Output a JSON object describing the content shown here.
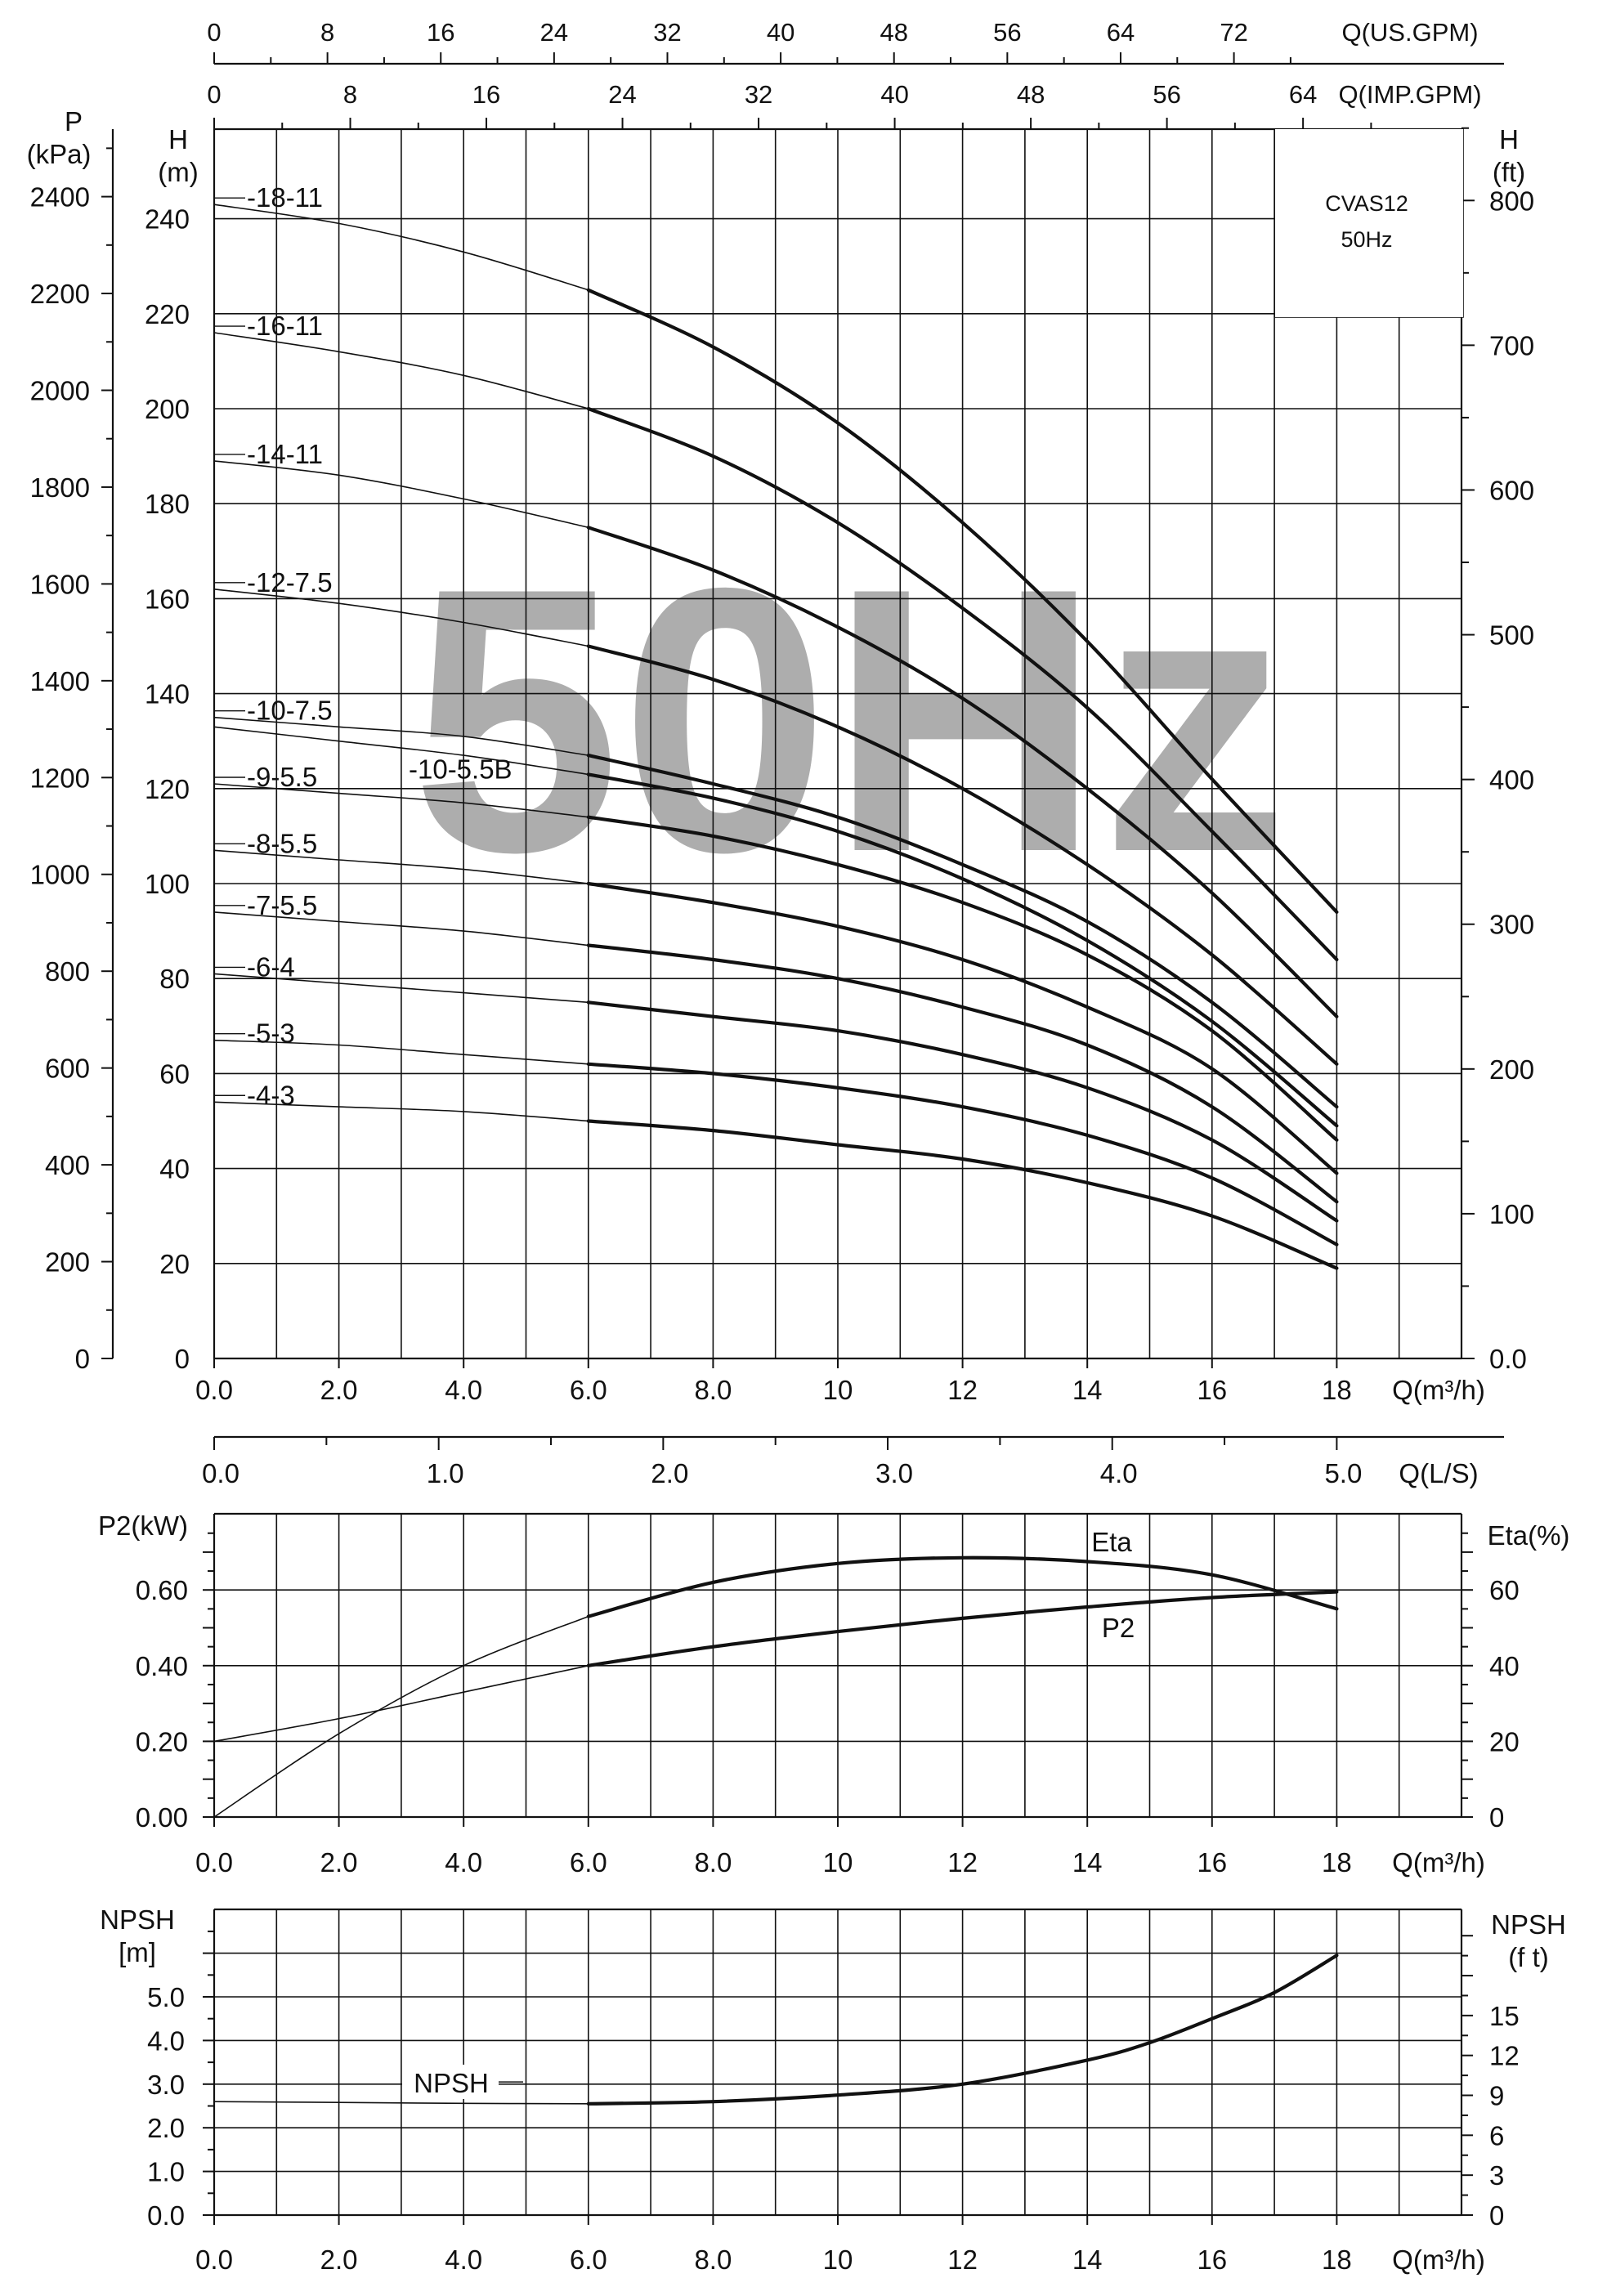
{
  "chart_data": [
    {
      "id": "head",
      "type": "line",
      "title": "",
      "watermark": "50Hz",
      "model_box": {
        "line1": "CVAS12",
        "line2": "50Hz"
      },
      "x_axis": {
        "label": "Q(m³/h)",
        "range": [
          0,
          20
        ],
        "ticks": [
          "0.0",
          "2.0",
          "4.0",
          "6.0",
          "8.0",
          "10",
          "12",
          "14",
          "16",
          "18"
        ]
      },
      "x_axis_ls": {
        "label": "Q(L/S)",
        "ticks": [
          "0.0",
          "1.0",
          "2.0",
          "3.0",
          "4.0",
          "5.0"
        ]
      },
      "x_axis_usgpm": {
        "label": "Q(US.GPM)",
        "ticks": [
          "0",
          "8",
          "16",
          "24",
          "32",
          "40",
          "48",
          "56",
          "64",
          "72"
        ]
      },
      "x_axis_impgpm": {
        "label": "Q(IMP.GPM)",
        "ticks": [
          "0",
          "8",
          "16",
          "24",
          "32",
          "40",
          "48",
          "56",
          "64"
        ]
      },
      "y_axis_left": {
        "label_line1": "H",
        "label_line2": "(m)",
        "range": [
          0,
          260
        ],
        "ticks": [
          "0",
          "20",
          "40",
          "60",
          "80",
          "100",
          "120",
          "140",
          "160",
          "180",
          "200",
          "220",
          "240"
        ]
      },
      "y_axis_pressure": {
        "label_line1": "P",
        "label_line2": "(kPa)",
        "ticks": [
          "0",
          "200",
          "400",
          "600",
          "800",
          "1000",
          "1200",
          "1400",
          "1600",
          "1800",
          "2000",
          "2200",
          "2400"
        ]
      },
      "y_axis_right": {
        "label_line1": "H",
        "label_line2": "(ft)",
        "ticks": [
          "0.0",
          "100",
          "200",
          "300",
          "400",
          "500",
          "600",
          "700",
          "800"
        ]
      },
      "grid": true,
      "series": [
        {
          "name": "-18-11",
          "q": [
            0,
            2,
            4,
            6,
            8,
            10,
            12,
            14,
            16,
            18
          ],
          "h": [
            243,
            239,
            233,
            225,
            213,
            197,
            176,
            151,
            122,
            94
          ]
        },
        {
          "name": "-16-11",
          "q": [
            0,
            2,
            4,
            6,
            8,
            10,
            12,
            14,
            16,
            18
          ],
          "h": [
            216,
            212,
            207,
            200,
            190,
            176,
            158,
            137,
            111,
            84
          ]
        },
        {
          "name": "-14-11",
          "q": [
            0,
            2,
            4,
            6,
            8,
            10,
            12,
            14,
            16,
            18
          ],
          "h": [
            189,
            186,
            181,
            175,
            166,
            154,
            139,
            120,
            98,
            72
          ]
        },
        {
          "name": "-12-7.5",
          "q": [
            0,
            2,
            4,
            6,
            8,
            10,
            12,
            14,
            16,
            18
          ],
          "h": [
            162,
            159,
            155,
            150,
            143,
            133,
            120,
            104,
            85,
            62
          ]
        },
        {
          "name": "-10-7.5",
          "q": [
            0,
            2,
            4,
            6,
            8,
            10,
            12,
            14,
            16,
            18
          ],
          "h": [
            135,
            133,
            131,
            127,
            121,
            114,
            104,
            92,
            75,
            53
          ]
        },
        {
          "name": "-10-5.5B",
          "q": [
            0,
            2,
            4,
            6,
            8,
            10,
            12,
            14,
            16,
            18
          ],
          "h": [
            133,
            130,
            127,
            123,
            118,
            111,
            101,
            88,
            71,
            49
          ]
        },
        {
          "name": "-9-5.5",
          "q": [
            0,
            2,
            4,
            6,
            8,
            10,
            12,
            14,
            16,
            18
          ],
          "h": [
            121,
            119,
            117,
            114,
            110,
            104,
            96,
            85,
            69,
            46
          ]
        },
        {
          "name": "-8-5.5",
          "q": [
            0,
            2,
            4,
            6,
            8,
            10,
            12,
            14,
            16,
            18
          ],
          "h": [
            107,
            105,
            103,
            100,
            96,
            91,
            84,
            74,
            61,
            39
          ]
        },
        {
          "name": "-7-5.5",
          "q": [
            0,
            2,
            4,
            6,
            8,
            10,
            12,
            14,
            16,
            18
          ],
          "h": [
            94,
            92,
            90,
            87,
            84,
            80,
            74,
            66,
            53,
            33
          ]
        },
        {
          "name": "-6-4",
          "q": [
            0,
            2,
            4,
            6,
            8,
            10,
            12,
            14,
            16,
            18
          ],
          "h": [
            81,
            79,
            77,
            75,
            72,
            69,
            64,
            57,
            46,
            29
          ]
        },
        {
          "name": "-5-3",
          "q": [
            0,
            2,
            4,
            6,
            8,
            10,
            12,
            14,
            16,
            18
          ],
          "h": [
            67,
            66,
            64,
            62,
            60,
            57,
            53,
            47,
            38,
            24
          ]
        },
        {
          "name": "-4-3",
          "q": [
            0,
            2,
            4,
            6,
            8,
            10,
            12,
            14,
            16,
            18
          ],
          "h": [
            54,
            53,
            52,
            50,
            48,
            45,
            42,
            37,
            30,
            19
          ]
        }
      ]
    },
    {
      "id": "power",
      "type": "line",
      "x_axis": {
        "label": "Q(m³/h)",
        "range": [
          0,
          20
        ],
        "ticks": [
          "0.0",
          "2.0",
          "4.0",
          "6.0",
          "8.0",
          "10",
          "12",
          "14",
          "16",
          "18"
        ]
      },
      "y_axis_left": {
        "label": "P2(kW)",
        "range": [
          0,
          0.8
        ],
        "ticks": [
          "0.00",
          "0.20",
          "0.40",
          "0.60"
        ]
      },
      "y_axis_right": {
        "label": "Eta(%)",
        "range": [
          0,
          80
        ],
        "ticks": [
          "0",
          "20",
          "40",
          "60"
        ]
      },
      "grid": true,
      "series": [
        {
          "name": "P2",
          "axis": "left",
          "q": [
            0,
            2,
            4,
            6,
            8,
            10,
            12,
            14,
            16,
            18
          ],
          "v": [
            0.2,
            0.26,
            0.33,
            0.4,
            0.45,
            0.49,
            0.525,
            0.555,
            0.58,
            0.595
          ]
        },
        {
          "name": "Eta",
          "axis": "right",
          "q": [
            0,
            2,
            4,
            6,
            8,
            10,
            12,
            14,
            16,
            18
          ],
          "v": [
            0,
            22,
            40,
            53,
            62,
            67,
            68.5,
            67.5,
            64,
            55
          ]
        }
      ]
    },
    {
      "id": "npsh",
      "type": "line",
      "x_axis": {
        "label": "Q(m³/h)",
        "range": [
          0,
          20
        ],
        "ticks": [
          "0.0",
          "2.0",
          "4.0",
          "6.0",
          "8.0",
          "10",
          "12",
          "14",
          "16",
          "18"
        ]
      },
      "y_axis_left": {
        "label_line1": "NPSH",
        "label_line2": "[m]",
        "range": [
          0,
          7
        ],
        "ticks": [
          "0.0",
          "1.0",
          "2.0",
          "3.0",
          "4.0",
          "5.0"
        ]
      },
      "y_axis_right": {
        "label_line1": "NPSH",
        "label_line2": "(f t)",
        "ticks": [
          "0",
          "3",
          "6",
          "9",
          "12",
          "15"
        ]
      },
      "grid": true,
      "series": [
        {
          "name": "NPSH",
          "q": [
            0,
            2,
            4,
            6,
            8,
            10,
            12,
            14,
            15,
            16,
            17,
            18
          ],
          "v": [
            2.6,
            2.58,
            2.56,
            2.55,
            2.6,
            2.75,
            3.0,
            3.55,
            3.95,
            4.5,
            5.1,
            5.95
          ]
        }
      ]
    }
  ]
}
